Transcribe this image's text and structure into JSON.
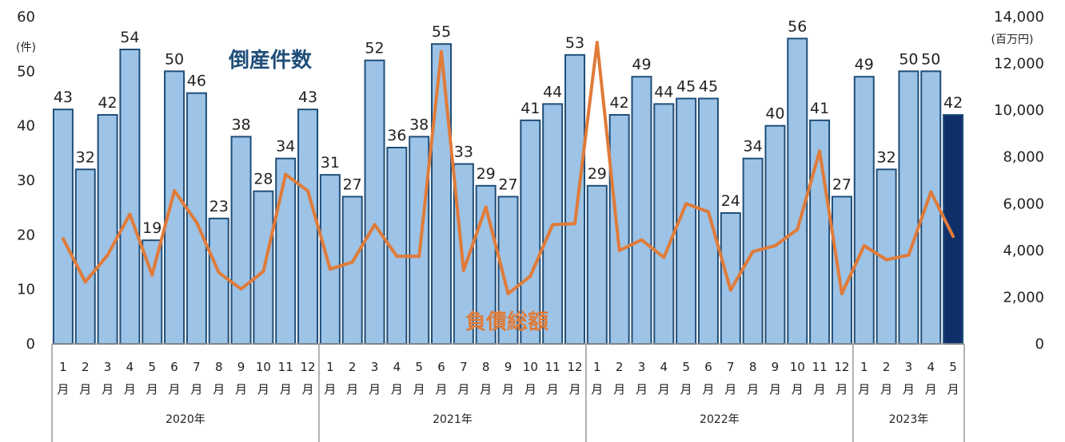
{
  "chart_data": {
    "type": "bar+line",
    "bar_series_name": "倒産件数",
    "line_series_name": "負債総額",
    "left_axis_unit": "(件)",
    "right_axis_unit": "(百万円)",
    "left_ylim": [
      0,
      60
    ],
    "left_ticks": [
      "0",
      "10",
      "20",
      "30",
      "40",
      "50",
      "60"
    ],
    "right_ylim": [
      0,
      14000
    ],
    "right_ticks": [
      "0",
      "2,000",
      "4,000",
      "6,000",
      "8,000",
      "10,000",
      "12,000",
      "14,000"
    ],
    "years": [
      {
        "label": "2020年",
        "months": 12
      },
      {
        "label": "2021年",
        "months": 12
      },
      {
        "label": "2022年",
        "months": 12
      },
      {
        "label": "2023年",
        "months": 5
      }
    ],
    "month_numbers": [
      "1",
      "2",
      "3",
      "4",
      "5",
      "6",
      "7",
      "8",
      "9",
      "10",
      "11",
      "12",
      "1",
      "2",
      "3",
      "4",
      "5",
      "6",
      "7",
      "8",
      "9",
      "10",
      "11",
      "12",
      "1",
      "2",
      "3",
      "4",
      "5",
      "6",
      "7",
      "8",
      "9",
      "10",
      "11",
      "12",
      "1",
      "2",
      "3",
      "4",
      "5"
    ],
    "month_suffix": "月",
    "bar_values": [
      43,
      32,
      42,
      54,
      19,
      50,
      46,
      23,
      38,
      28,
      34,
      43,
      31,
      27,
      52,
      36,
      38,
      55,
      33,
      29,
      27,
      41,
      44,
      53,
      29,
      42,
      49,
      44,
      45,
      45,
      24,
      34,
      40,
      56,
      41,
      27,
      49,
      32,
      50,
      50,
      42
    ],
    "bar_labels": [
      "43",
      "32",
      "42",
      "54",
      "19",
      "50",
      "46",
      "23",
      "38",
      "28",
      "34",
      "43",
      "31",
      "27",
      "52",
      "36",
      "38",
      "55",
      "33",
      "29",
      "27",
      "41",
      "44",
      "53",
      "29",
      "42",
      "49",
      "44",
      "45",
      "45",
      "24",
      "34",
      "40",
      "56",
      "41",
      "27",
      "49",
      "32",
      "50",
      "50",
      "42"
    ],
    "line_values": [
      4500,
      2650,
      3800,
      5550,
      2950,
      6550,
      5200,
      3050,
      2350,
      3100,
      7250,
      6550,
      3200,
      3500,
      5100,
      3750,
      3750,
      12500,
      3150,
      5850,
      2150,
      2900,
      5100,
      5150,
      12900,
      4000,
      4450,
      3700,
      6000,
      5650,
      2300,
      3950,
      4200,
      4900,
      8250,
      2150,
      4200,
      3600,
      3800,
      6500,
      4600
    ],
    "colors": {
      "bar_fill": "#9dc3e6",
      "bar_edge": "#1f4e79",
      "highlight_fill": "#0f2f6b",
      "line": "#e07b39",
      "axis_grid": "#999999"
    }
  }
}
